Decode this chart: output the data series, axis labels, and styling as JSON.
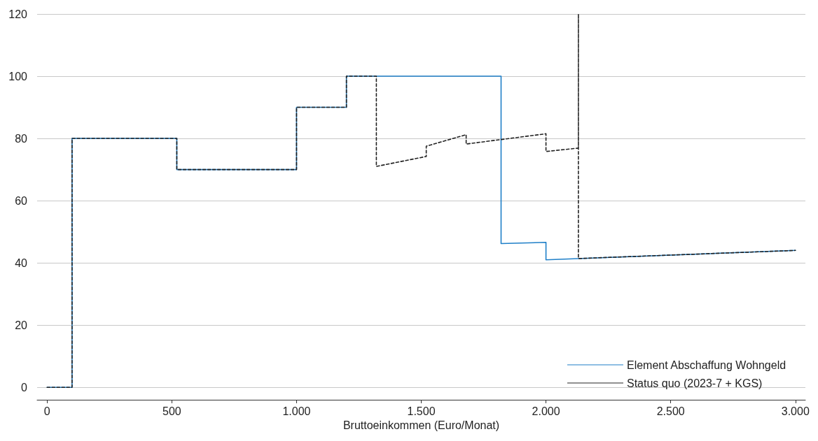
{
  "chart_data": {
    "type": "line",
    "xlabel": "Bruttoeinkommen (Euro/Monat)",
    "xlim": [
      -40,
      3040
    ],
    "xticks": [
      0,
      500,
      {
        "value": 1000,
        "label": "1.000"
      },
      {
        "value": 1500,
        "label": "1.500"
      },
      {
        "value": 2000,
        "label": "2.000"
      },
      {
        "value": 2500,
        "label": "2.500"
      },
      {
        "value": 3000,
        "label": "3.000"
      }
    ],
    "ylim": [
      -4,
      120
    ],
    "yticks": [
      0,
      20,
      40,
      60,
      80,
      100,
      120
    ],
    "grid": "y",
    "legend": "bottom right",
    "marker": "none",
    "series": [
      {
        "name": "Element Abschaffung Wohngeld",
        "color": "#1f7fc8",
        "line_style": "solid",
        "x": [
          0,
          100,
          100,
          520,
          520,
          1000,
          1000,
          1200,
          1200,
          1820,
          1820,
          2000,
          2000,
          3000
        ],
        "values": [
          0,
          0,
          80,
          80,
          70,
          70,
          90,
          90,
          100,
          100,
          46.2,
          46.6,
          41,
          44
        ]
      },
      {
        "name": "Status quo (2023-7 + KGS)",
        "color": "#222222",
        "line_style": "dashed",
        "x": [
          0,
          100,
          100,
          520,
          520,
          1000,
          1000,
          1200,
          1200,
          1320,
          1320,
          1520,
          1520,
          1680,
          1680,
          2000,
          2000,
          2130,
          2130,
          2130,
          3000
        ],
        "values": [
          0,
          0,
          80,
          80,
          70,
          70,
          90,
          90,
          100,
          100,
          71,
          74.2,
          77.5,
          81.2,
          78.2,
          81.5,
          75.8,
          76.9,
          120,
          41.4,
          44
        ]
      }
    ]
  }
}
